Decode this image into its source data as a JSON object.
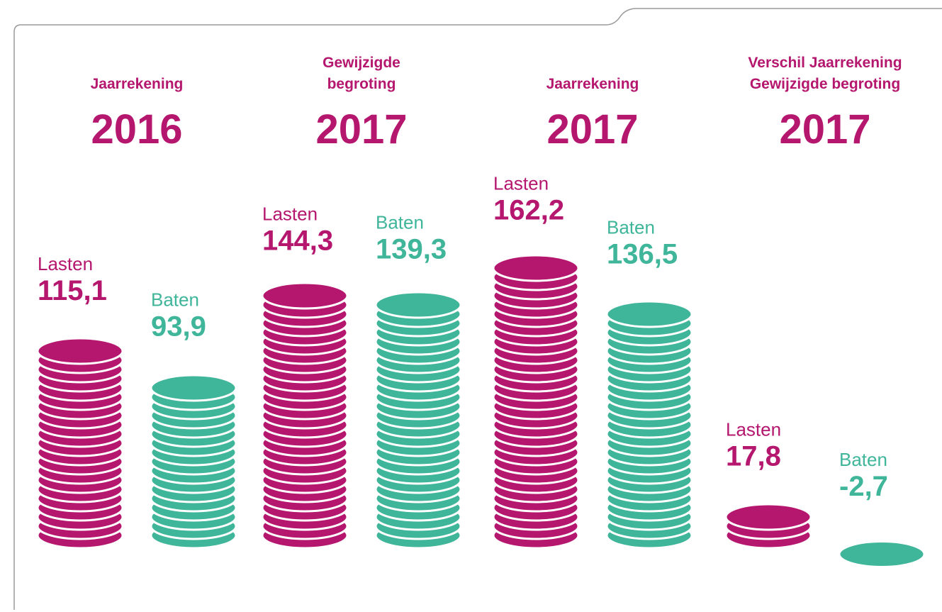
{
  "chart_data": {
    "type": "coin-stack",
    "group_titles": [
      [
        "Jaarrekening"
      ],
      [
        "Gewijzigde",
        "begroting"
      ],
      [
        "Jaarrekening"
      ],
      [
        "Verschil Jaarrekening",
        "Gewijzigde begroting"
      ]
    ],
    "group_years": [
      "2016",
      "2017",
      "2017",
      "2017"
    ],
    "title_color": "#b5176e",
    "series": [
      {
        "name": "Lasten",
        "color": "#b5176e",
        "values": [
          115.1,
          144.3,
          162.2,
          17.8
        ],
        "value_labels": [
          "115,1",
          "144,3",
          "162,2",
          "17,8"
        ]
      },
      {
        "name": "Baten",
        "color": "#3fb59a",
        "values": [
          93.9,
          139.3,
          136.5,
          -2.7
        ],
        "value_labels": [
          "93,9",
          "139,3",
          "136,5",
          "-2,7"
        ]
      }
    ]
  }
}
